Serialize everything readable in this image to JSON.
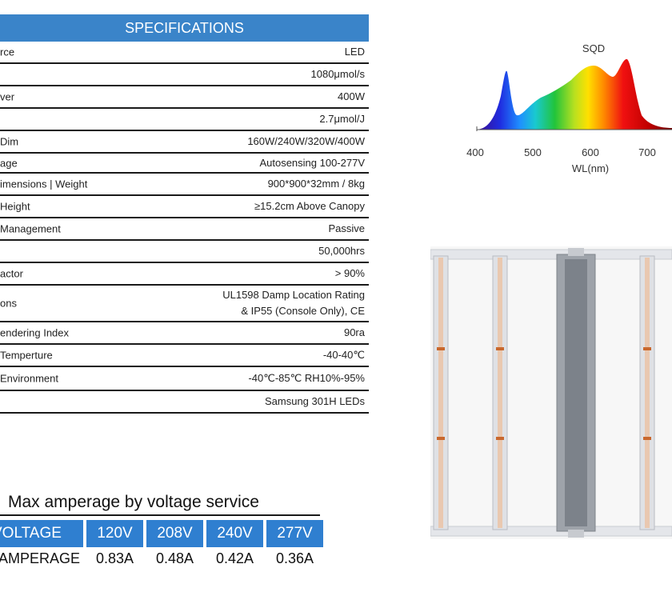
{
  "specs": {
    "title": "SPECIFICATIONS",
    "rows": [
      {
        "label": "rce",
        "value": "LED"
      },
      {
        "label": "",
        "value": "1080μmol/s"
      },
      {
        "label": "ver",
        "value": "400W"
      },
      {
        "label": "",
        "value": "2.7μmol/J"
      },
      {
        "label": "Dim",
        "value": "160W/240W/320W/400W"
      },
      {
        "label": "age",
        "value": "Autosensing 100-277V"
      },
      {
        "label": "imensions | Weight",
        "value": "900*900*32mm / 8kg"
      },
      {
        "label": "Height",
        "value": "≥15.2cm Above Canopy"
      },
      {
        "label": "Management",
        "value": "Passive"
      },
      {
        "label": "",
        "value": "50,000hrs"
      },
      {
        "label": "actor",
        "value": "> 90%"
      },
      {
        "label": "ons",
        "value": "UL1598 Damp Location Rating",
        "value2": "& IP55 (Console Only), CE"
      },
      {
        "label": "endering Index",
        "value": "90ra"
      },
      {
        "label": "Temperture",
        "value": "-40-40℃"
      },
      {
        "label": "Environment",
        "value": "-40℃-85℃ RH10%-95%"
      },
      {
        "label": "",
        "value": "Samsung 301H LEDs"
      }
    ]
  },
  "amperage": {
    "title": "Max amperage by voltage service",
    "voltage_label": "VOLTAGE",
    "amperage_label": "AMPERAGE",
    "voltages": [
      "120V",
      "208V",
      "240V",
      "277V"
    ],
    "amps": [
      "0.83A",
      "0.48A",
      "0.42A",
      "0.36A"
    ],
    "header_color": "#2f7fd0"
  },
  "spectrum": {
    "title": "SQD",
    "xlabel": "WL(nm)",
    "ticks": [
      "400",
      "500",
      "600",
      "700"
    ]
  },
  "colors": {
    "accent": "#3a84c9"
  }
}
